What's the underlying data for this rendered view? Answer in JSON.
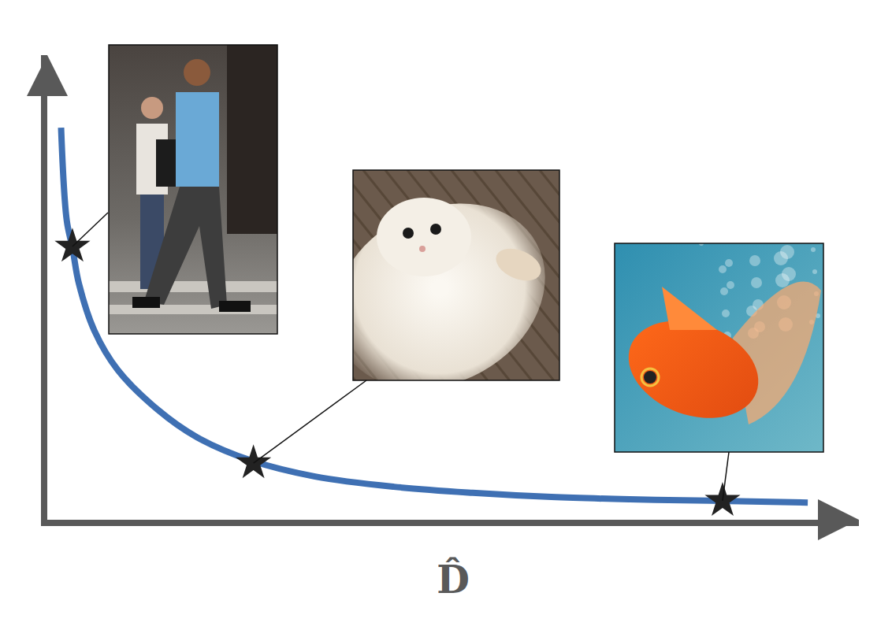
{
  "chart_data": {
    "type": "line",
    "x_label": "D̂",
    "x": [
      0.17,
      0.24,
      0.31,
      0.39,
      0.58,
      0.87,
      1.36,
      1.84,
      2.52,
      3.3,
      4.27,
      5.24,
      6.21,
      7.18,
      8.16,
      9.37
    ],
    "values": [
      8.44,
      6.44,
      5.85,
      5.08,
      4.07,
      3.22,
      2.37,
      1.78,
      1.27,
      0.93,
      0.71,
      0.58,
      0.49,
      0.44,
      0.41,
      0.37
    ],
    "color": "#3f70b3",
    "highlighted_points": {
      "x": [
        0.31,
        2.54,
        8.32
      ],
      "values": [
        5.88,
        1.22,
        0.41
      ]
    },
    "marker": "star",
    "xlim": [
      0,
      10
    ],
    "ylim": [
      0,
      10
    ],
    "tick_labels": false,
    "grid": false
  }
}
